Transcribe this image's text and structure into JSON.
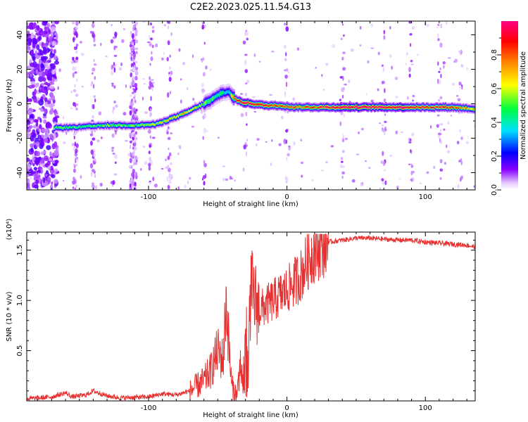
{
  "title": "C2E2.2023.025.11.54.G13",
  "chart_data": [
    {
      "type": "heatmap",
      "xlabel": "Height of straight line (km)",
      "ylabel": "Frequency (Hz)",
      "xlim": [
        -188,
        136
      ],
      "ylim": [
        -50,
        48
      ],
      "xticks": [
        -100,
        0,
        100
      ],
      "yticks": [
        -40,
        -20,
        0,
        20,
        40
      ],
      "colorbar": {
        "label": "Normalized spectral amplitude",
        "range": [
          0,
          1
        ],
        "ticks": [
          0.0,
          0.2,
          0.4,
          0.6,
          0.8
        ],
        "colors": [
          "#ffffff",
          "#e6ccff",
          "#8800ff",
          "#0000ff",
          "#00e0ff",
          "#00ff40",
          "#ffff00",
          "#ff8000",
          "#ff0000",
          "#ff0088"
        ]
      },
      "ridge": {
        "x": [
          -168,
          -150,
          -130,
          -110,
          -95,
          -85,
          -75,
          -65,
          -55,
          -48,
          -42,
          -38,
          -33,
          -25,
          -15,
          -5,
          5,
          20,
          40,
          60,
          80,
          100,
          120,
          136
        ],
        "y": [
          -14,
          -13.5,
          -12.5,
          -12.5,
          -12,
          -9,
          -6,
          -2,
          2,
          6,
          7,
          3,
          1,
          0,
          -1,
          -1,
          -2,
          -2,
          -2,
          -2,
          -2,
          -2,
          -2,
          -3
        ],
        "amplitude": [
          0.45,
          0.45,
          0.5,
          0.5,
          0.55,
          0.6,
          0.65,
          0.55,
          0.45,
          0.4,
          0.35,
          0.7,
          0.95,
          0.9,
          0.85,
          0.85,
          0.75,
          0.8,
          0.95,
          0.95,
          0.95,
          0.85,
          0.8,
          0.6
        ]
      }
    },
    {
      "type": "line",
      "xlabel": "Height of straight line (km)",
      "ylabel": "SNR (10 * v/v)",
      "yscale_label": "(x10⁴)",
      "xlim": [
        -188,
        136
      ],
      "ylim": [
        0,
        1.68
      ],
      "xticks": [
        -100,
        0,
        100
      ],
      "yticks": [
        0.5,
        1.0,
        1.5
      ],
      "color": "#e83030",
      "series": [
        {
          "x": [
            -188,
            -170,
            -160,
            -155,
            -145,
            -140,
            -130,
            -120,
            -100,
            -90,
            -80,
            -70,
            -60,
            -55,
            -50,
            -46,
            -44,
            -40,
            -36,
            -34,
            -32,
            -30,
            -28,
            -26,
            -20,
            -10,
            0,
            10,
            15,
            20,
            25,
            30,
            40,
            50,
            60,
            70,
            80,
            90,
            100,
            110,
            120,
            130,
            136
          ],
          "y": [
            0.02,
            0.04,
            0.08,
            0.04,
            0.06,
            0.1,
            0.05,
            0.03,
            0.04,
            0.07,
            0.06,
            0.1,
            0.2,
            0.3,
            0.5,
            0.4,
            1.0,
            0.15,
            0.05,
            0.4,
            0.2,
            0.9,
            0.45,
            1.1,
            0.9,
            1.0,
            1.1,
            1.25,
            1.4,
            1.5,
            1.55,
            1.58,
            1.6,
            1.62,
            1.62,
            1.61,
            1.6,
            1.6,
            1.58,
            1.57,
            1.56,
            1.55,
            1.53
          ]
        }
      ]
    }
  ]
}
